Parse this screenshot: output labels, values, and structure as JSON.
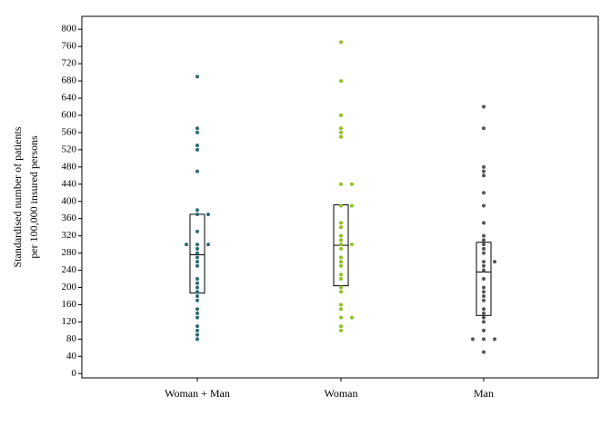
{
  "chart_data": {
    "type": "box-strip",
    "ylabel": [
      "Standardised number of patients",
      "per 100,000 insured persons"
    ],
    "categories": [
      "Woman + Man",
      "Woman",
      "Man"
    ],
    "groups": [
      {
        "color": "#2b6b76",
        "q1": 187,
        "median": 276,
        "q3": 370,
        "values": [
          690,
          570,
          560,
          530,
          520,
          470,
          380,
          370,
          370,
          330,
          300,
          300,
          300,
          290,
          280,
          270,
          260,
          250,
          220,
          210,
          200,
          190,
          180,
          170,
          150,
          140,
          130,
          110,
          100,
          90,
          80
        ]
      },
      {
        "color": "#8dc21f",
        "q1": 204,
        "median": 298,
        "q3": 392,
        "values": [
          770,
          680,
          600,
          570,
          560,
          550,
          440,
          440,
          390,
          390,
          350,
          340,
          320,
          310,
          300,
          300,
          290,
          270,
          260,
          250,
          230,
          220,
          200,
          190,
          160,
          150,
          130,
          130,
          110,
          100
        ]
      },
      {
        "color": "#555555",
        "q1": 135,
        "median": 236,
        "q3": 305,
        "values": [
          620,
          570,
          480,
          470,
          460,
          420,
          390,
          350,
          320,
          310,
          300,
          290,
          280,
          260,
          260,
          250,
          240,
          220,
          200,
          190,
          180,
          170,
          150,
          140,
          130,
          120,
          100,
          80,
          80,
          80,
          50
        ]
      }
    ],
    "ylim": [
      -10,
      830
    ],
    "yticks": [
      0,
      40,
      80,
      120,
      160,
      200,
      240,
      280,
      320,
      360,
      400,
      440,
      480,
      520,
      560,
      600,
      640,
      680,
      720,
      760,
      800
    ]
  }
}
